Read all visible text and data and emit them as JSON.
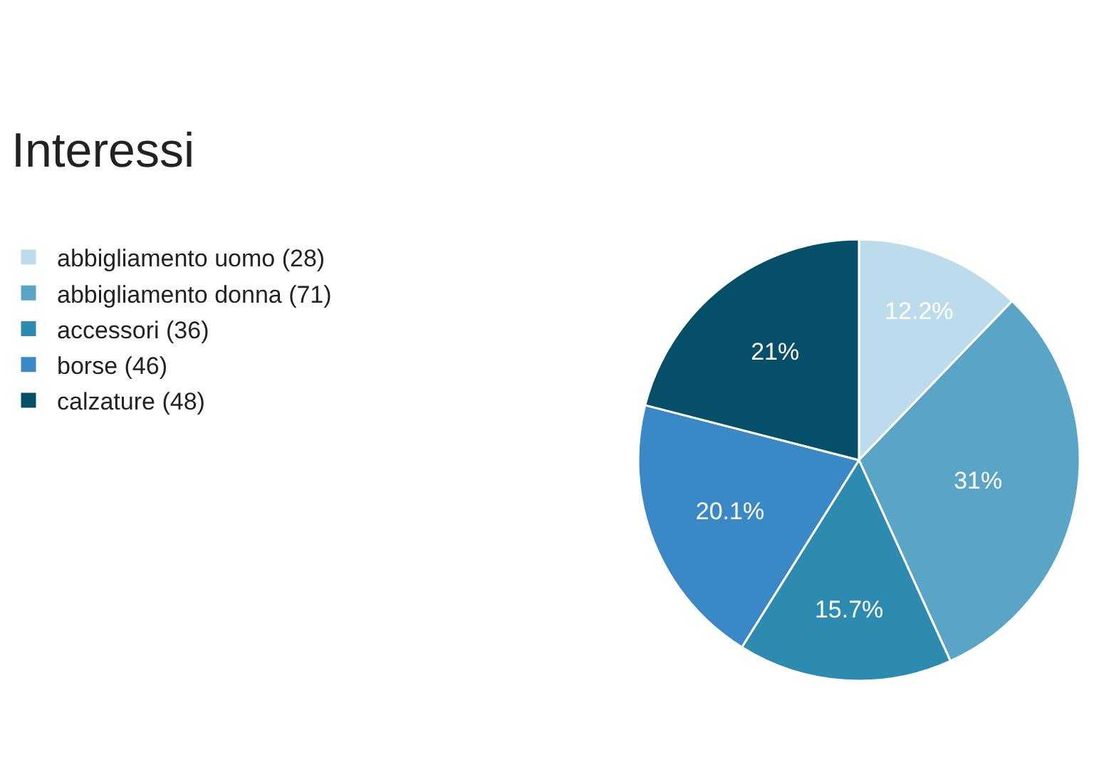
{
  "chart_data": {
    "type": "pie",
    "title": "Interessi",
    "categories": [
      "abbigliamento uomo (28)",
      "abbigliamento donna (71)",
      "accessori (36)",
      "borse (46)",
      "calzature (48)"
    ],
    "values": [
      12.2,
      31,
      15.7,
      20.1,
      21
    ],
    "value_labels": [
      "12.2%",
      "31%",
      "15.7%",
      "20.1%",
      "21%"
    ],
    "colors": [
      "#bddceb",
      "#5aa5c6",
      "#2e8bb0",
      "#3a88c6",
      "#064f68"
    ],
    "legend": "left"
  }
}
